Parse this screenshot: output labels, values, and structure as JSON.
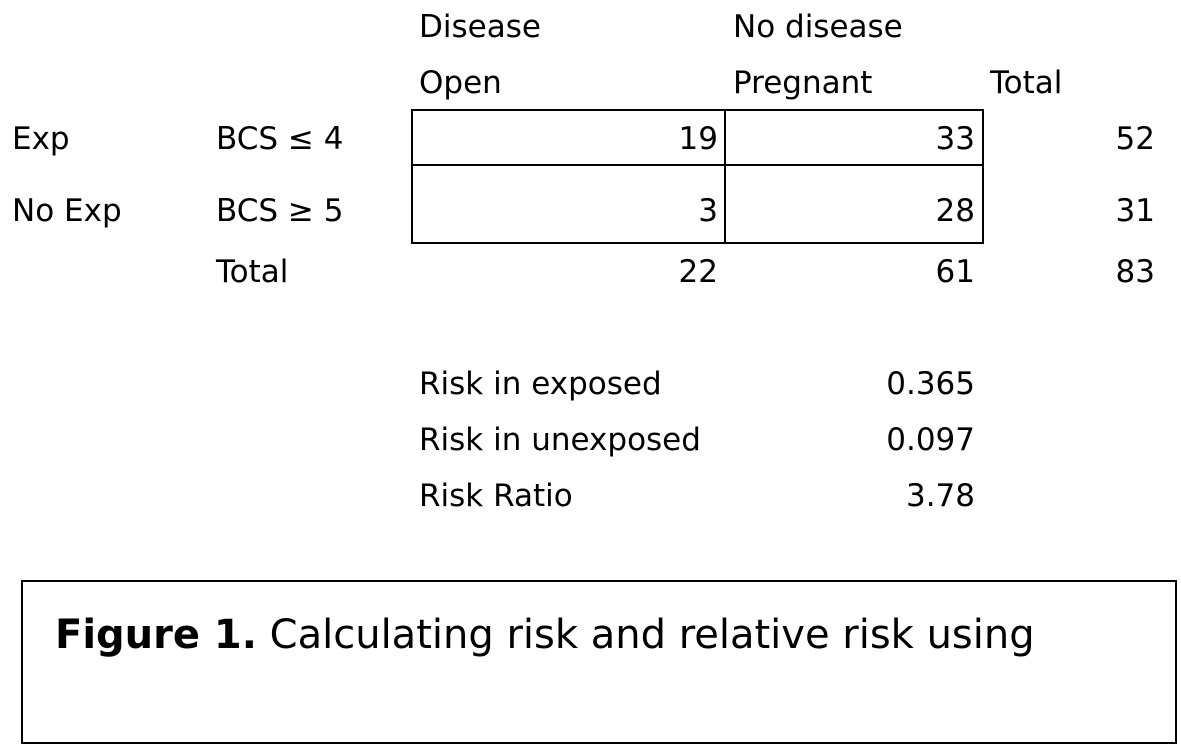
{
  "table": {
    "col_headers": {
      "disease": "Disease",
      "open": "Open",
      "no_disease": "No disease",
      "pregnant": "Pregnant",
      "total": "Total"
    },
    "rows": [
      {
        "exposure": "Exp",
        "bcs": "BCS ≤ 4",
        "open": "19",
        "pregnant": "33",
        "total": "52"
      },
      {
        "exposure": "No Exp",
        "bcs": "BCS ≥ 5",
        "open": "3",
        "pregnant": "28",
        "total": "31"
      }
    ],
    "totals_row": {
      "label": "Total",
      "open": "22",
      "pregnant": "61",
      "total": "83"
    }
  },
  "stats": [
    {
      "label": "Risk in exposed",
      "value": "0.365"
    },
    {
      "label": "Risk in unexposed",
      "value": "0.097"
    },
    {
      "label": "Risk Ratio",
      "value": "3.78"
    }
  ],
  "caption": {
    "prefix": "Figure 1.",
    "text": " Calculating risk and relative risk using"
  }
}
